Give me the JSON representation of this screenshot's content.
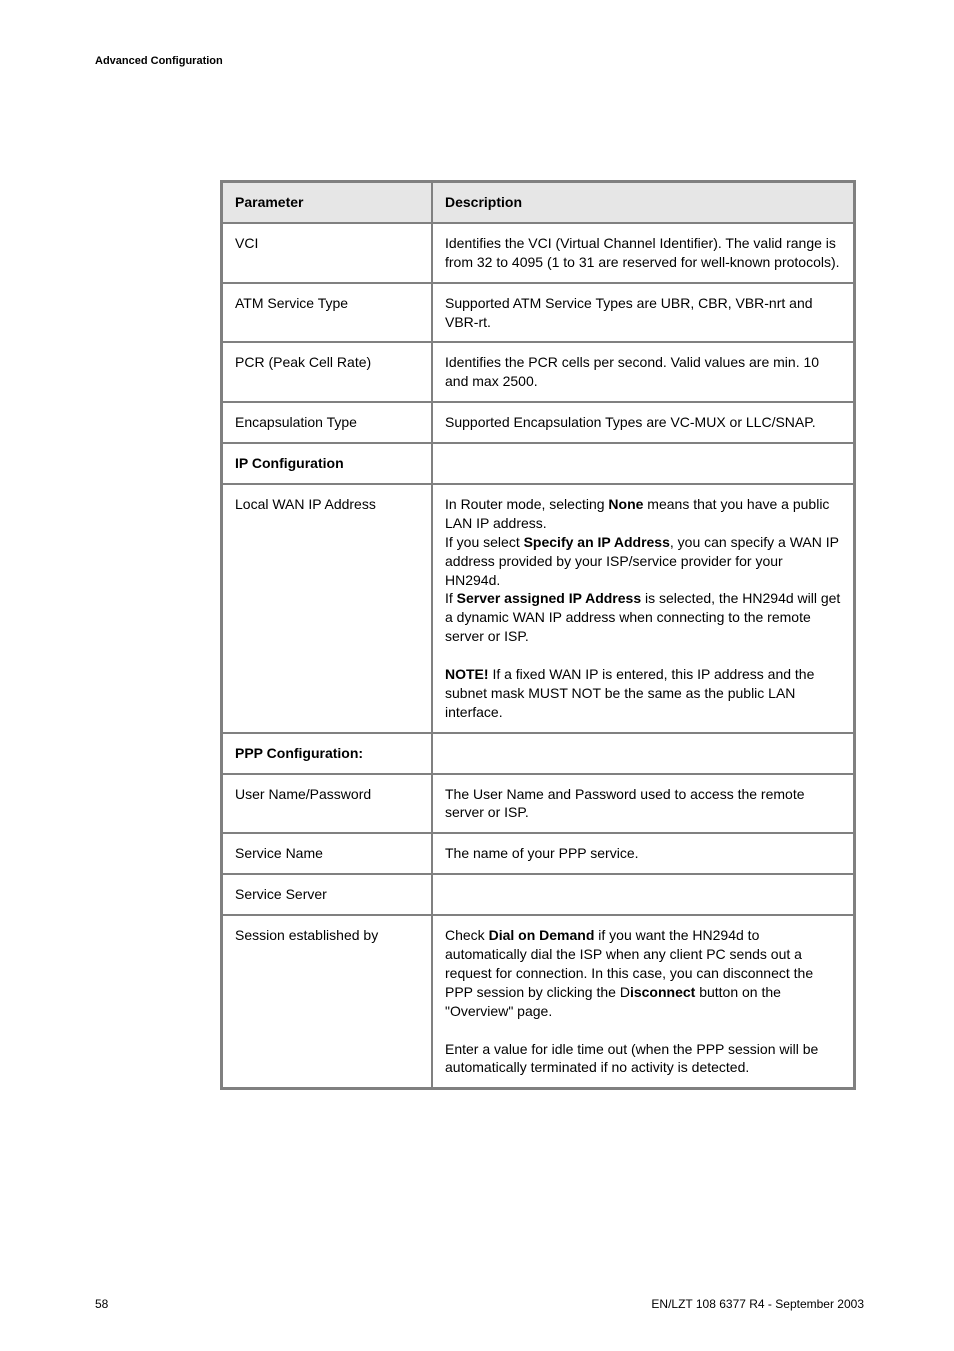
{
  "header": {
    "section": "Advanced Configuration"
  },
  "table": {
    "col_param_header": "Parameter",
    "col_desc_header": "Description",
    "rows": [
      {
        "param": "VCI",
        "desc": "Identifies the VCI (Virtual Channel Identifier). The valid range is from 32 to 4095 (1 to 31 are reserved for well-known protocols)."
      },
      {
        "param": "ATM Service Type",
        "desc": "Supported ATM Service Types are UBR, CBR, VBR-nrt and VBR-rt."
      },
      {
        "param": "PCR (Peak Cell Rate)",
        "desc": "Identifies the PCR cells per second. Valid values are min. 10 and max 2500."
      },
      {
        "param": "Encapsulation Type",
        "desc": "Supported Encapsulation Types are VC-MUX or LLC/SNAP."
      },
      {
        "param": "IP Configuration",
        "param_bold": true,
        "desc": ""
      },
      {
        "param": "Local WAN IP Address",
        "desc_parts": [
          {
            "t": "In Router mode, selecting "
          },
          {
            "t": "None",
            "b": true
          },
          {
            "t": " means that you have a public LAN IP address.\nIf you select "
          },
          {
            "t": "Specify an IP Address",
            "b": true
          },
          {
            "t": ", you can specify a WAN IP address provided by your ISP/service provider for your HN294d.\nIf "
          },
          {
            "t": "Server assigned IP Address",
            "b": true
          },
          {
            "t": " is selected, the HN294d will get a dynamic WAN IP address when connecting to the remote server or ISP.\n\n"
          },
          {
            "t": "NOTE!",
            "b": true
          },
          {
            "t": " If a fixed WAN IP is entered, this IP address and the subnet mask MUST NOT be the same as the public LAN interface."
          }
        ]
      },
      {
        "param": "PPP Configuration:",
        "param_bold": true,
        "desc": ""
      },
      {
        "param": "User Name/Password",
        "desc": "The User Name and Password used to access the remote server or ISP."
      },
      {
        "param": "Service Name",
        "desc": "The name of your PPP service."
      },
      {
        "param": "Service Server",
        "desc": ""
      },
      {
        "param": "Session established by",
        "desc_parts": [
          {
            "t": "Check "
          },
          {
            "t": "Dial on Demand",
            "b": true
          },
          {
            "t": " if you want the HN294d to automatically dial the ISP when any client PC sends out a request for connection. In this case, you can disconnect the PPP session by clicking the D"
          },
          {
            "t": "isconnect",
            "b": true
          },
          {
            "t": " button on the \"Overview\" page.\n\nEnter a value for idle time out (when the PPP session will be automatically terminated if no activity is detected."
          }
        ]
      }
    ]
  },
  "footer": {
    "page_number": "58",
    "doc_ref": "EN/LZT 108 6377 R4 - September 2003"
  }
}
